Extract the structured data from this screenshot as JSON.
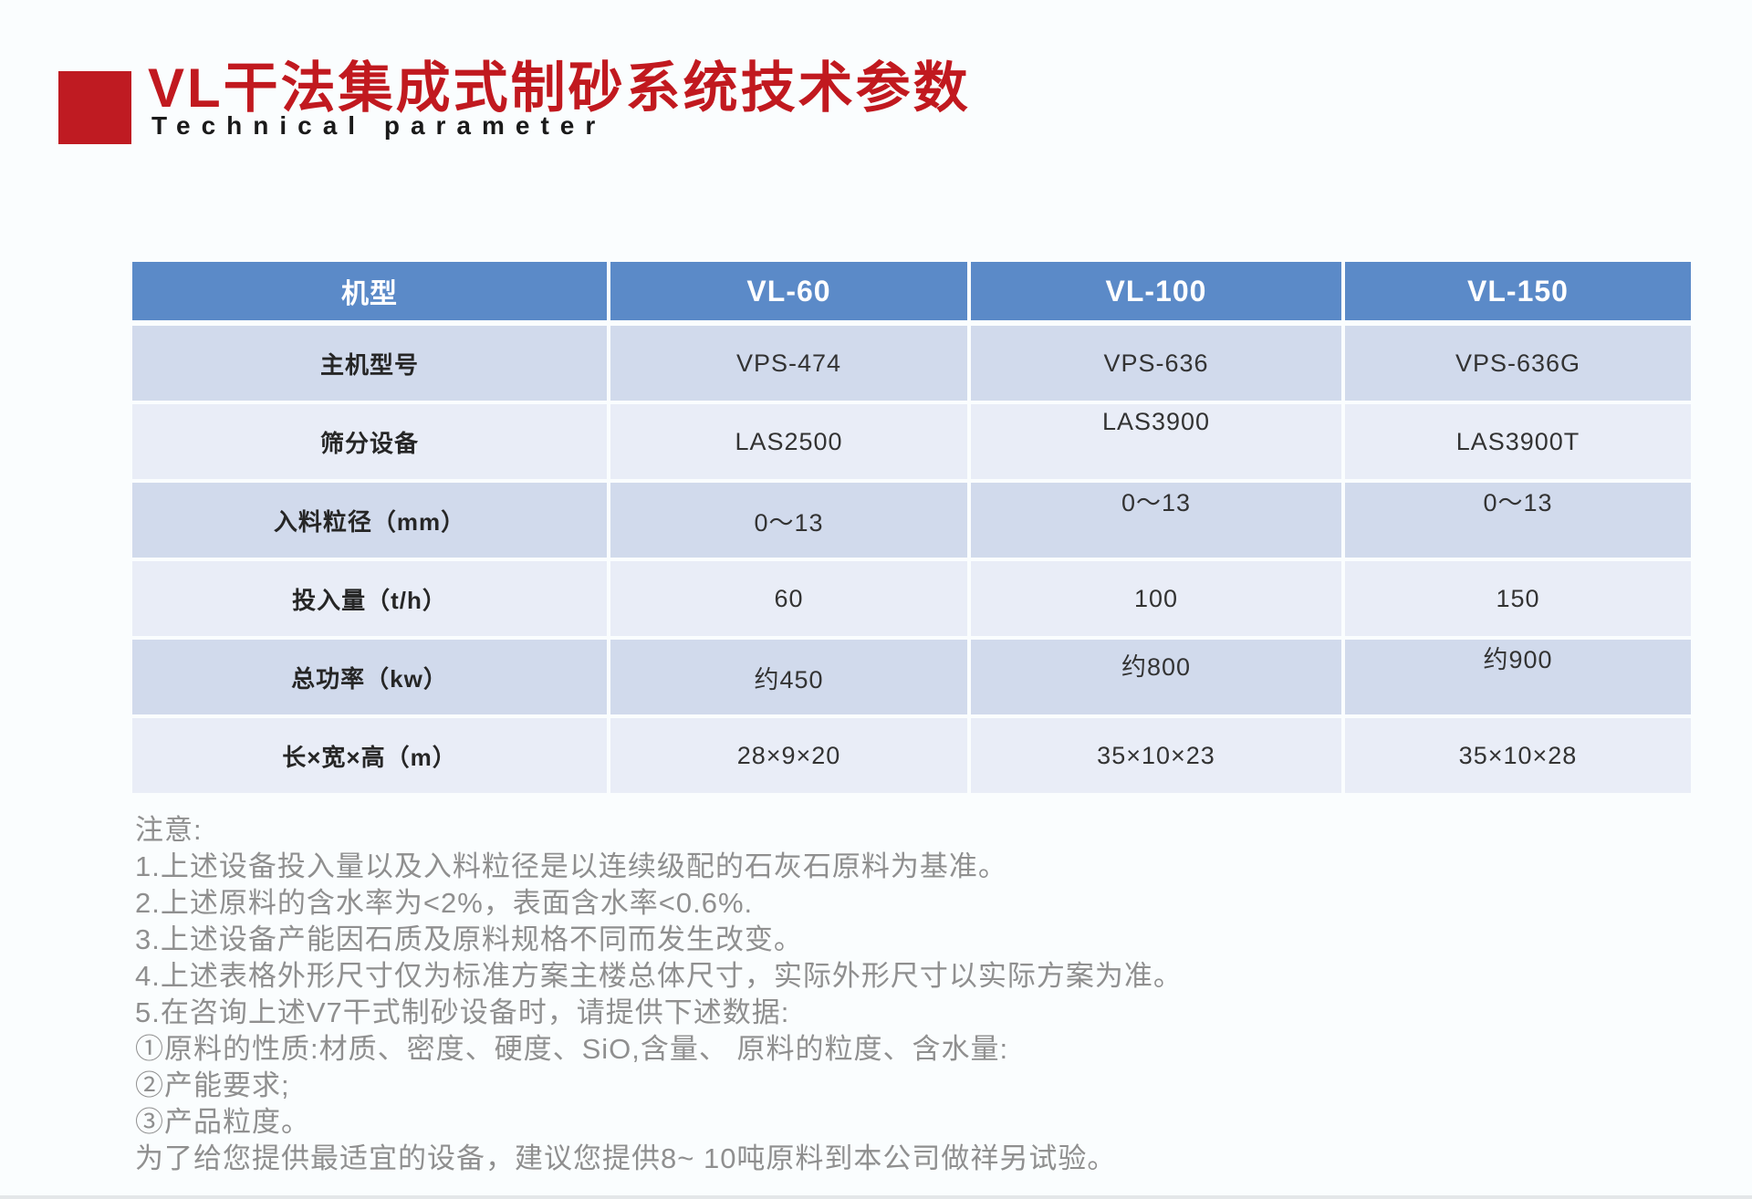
{
  "colors": {
    "accent_red": "#bf1b22",
    "title_red": "#c1191f",
    "header_blue": "#5b8ac8",
    "row_dark": "#d1daec",
    "row_light": "#e9edf7",
    "note_gray": "#8f8f8f"
  },
  "header": {
    "title": "VL干法集成式制砂系统技术参数",
    "subtitle": "Technical parameter"
  },
  "table": {
    "columns": [
      "机型",
      "VL-60",
      "VL-100",
      "VL-150"
    ],
    "rows": [
      {
        "label": "主机型号",
        "values": [
          "VPS-474",
          "VPS-636",
          "VPS-636G"
        ]
      },
      {
        "label": "筛分设备",
        "values": [
          "LAS2500",
          "LAS3900",
          "LAS3900T"
        ]
      },
      {
        "label": "入料粒径（mm）",
        "values": [
          "0～13",
          "0～13",
          "0～13"
        ]
      },
      {
        "label": "投入量（t/h）",
        "values": [
          "60",
          "100",
          "150"
        ]
      },
      {
        "label": "总功率（kw）",
        "values": [
          "约450",
          "约800",
          "约900"
        ]
      },
      {
        "label": "长×宽×高（m）",
        "values": [
          "28×9×20",
          "35×10×23",
          "35×10×28"
        ]
      }
    ]
  },
  "notes": {
    "lines": [
      "注意:",
      "1.上述设备投入量以及入料粒径是以连续级配的石灰石原料为基准。",
      "2.上述原料的含水率为<2%，表面含水率<0.6%.",
      "3.上述设备产能因石质及原料规格不同而发生改变。",
      "4.上述表格外形尺寸仅为标准方案主楼总体尺寸，实际外形尺寸以实际方案为准。",
      "5.在咨询上述V7干式制砂设备时，请提供下述数据:",
      "①原料的性质:材质、密度、硬度、SiO,含量、 原料的粒度、含水量:",
      "②产能要求;",
      "③产品粒度。",
      "为了给您提供最适宜的设备，建议您提供8~ 10吨原料到本公司做祥另试验。"
    ]
  }
}
